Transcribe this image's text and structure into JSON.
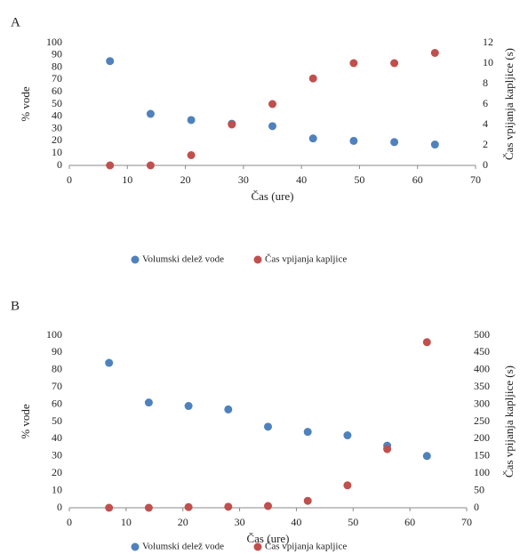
{
  "chart_data": [
    {
      "type": "scatter",
      "title": "A",
      "xlabel": "Čas (ure)",
      "ylabel": "% vode",
      "y2label": "Čas vpijanja kapljice (s)",
      "xlim": [
        0,
        70
      ],
      "xticks": [
        0,
        10,
        20,
        30,
        40,
        50,
        60,
        70
      ],
      "ylim": [
        0,
        100
      ],
      "yticks": [
        0,
        10,
        20,
        30,
        40,
        50,
        60,
        70,
        80,
        90,
        100
      ],
      "y2lim": [
        0,
        12
      ],
      "y2ticks": [
        0,
        2,
        4,
        6,
        8,
        10,
        12
      ],
      "x": [
        7,
        14,
        21,
        28,
        35,
        42,
        49,
        56,
        63
      ],
      "series": [
        {
          "name": "Volumski delež vode",
          "color": "#4f81bd",
          "values": [
            85,
            42,
            37,
            34,
            32,
            22,
            20,
            19,
            17
          ]
        },
        {
          "name": "Čas vpijanja kapljice",
          "color": "#c0504d",
          "axis": "y2",
          "values": [
            0,
            0,
            1,
            4,
            6,
            8.5,
            10,
            10,
            11
          ]
        }
      ]
    },
    {
      "type": "scatter",
      "title": "B",
      "xlabel": "Čas (ure)",
      "ylabel": "% vode",
      "y2label": "Čas vpijanja kapljice (s)",
      "xlim": [
        0,
        70
      ],
      "xticks": [
        0,
        10,
        20,
        30,
        40,
        50,
        60,
        70
      ],
      "ylim": [
        0,
        100
      ],
      "yticks": [
        0,
        10,
        20,
        30,
        40,
        50,
        60,
        70,
        80,
        90,
        100
      ],
      "y2lim": [
        0,
        500
      ],
      "y2ticks": [
        0,
        50,
        100,
        150,
        200,
        250,
        300,
        350,
        400,
        450,
        500
      ],
      "x": [
        7,
        14,
        21,
        28,
        35,
        42,
        49,
        56,
        63
      ],
      "series": [
        {
          "name": "Volumski delež vode",
          "color": "#4f81bd",
          "values": [
            84,
            61,
            59,
            57,
            47,
            44,
            42,
            36,
            30
          ]
        },
        {
          "name": "Čas vpijanja kapljice",
          "color": "#c0504d",
          "axis": "y2",
          "values": [
            0,
            0,
            2,
            3,
            5,
            20,
            65,
            170,
            480
          ]
        }
      ]
    }
  ]
}
